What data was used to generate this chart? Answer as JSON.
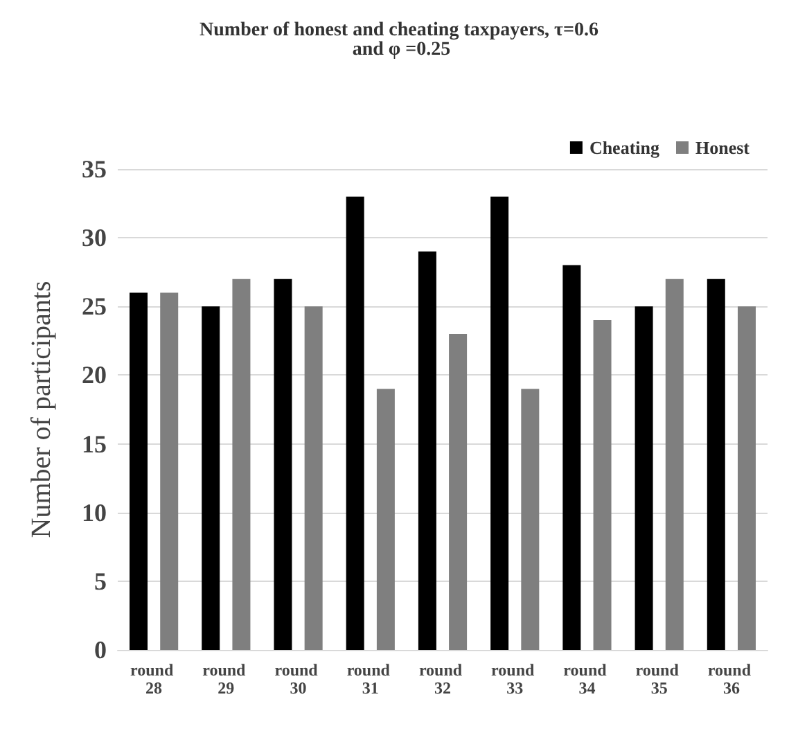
{
  "chart_data": {
    "type": "bar",
    "title": "Number of honest and cheating taxpayers, τ=0.6 and φ =0.25",
    "ylabel": "Number of participants",
    "categories": [
      "round 28",
      "round 29",
      "round 30",
      "round 31",
      "round 32",
      "round 33",
      "round 34",
      "round 35",
      "round 36"
    ],
    "series": [
      {
        "name": "Cheating",
        "color": "#000000",
        "values": [
          26,
          25,
          27,
          33,
          29,
          33,
          28,
          25,
          27
        ]
      },
      {
        "name": "Honest",
        "color": "#7f7f7f",
        "values": [
          26,
          27,
          25,
          19,
          23,
          19,
          24,
          27,
          25
        ]
      }
    ],
    "ylim": [
      0,
      35
    ],
    "yticks": [
      0,
      5,
      10,
      15,
      20,
      25,
      30,
      35
    ],
    "grid": "y",
    "legend": "top right"
  }
}
